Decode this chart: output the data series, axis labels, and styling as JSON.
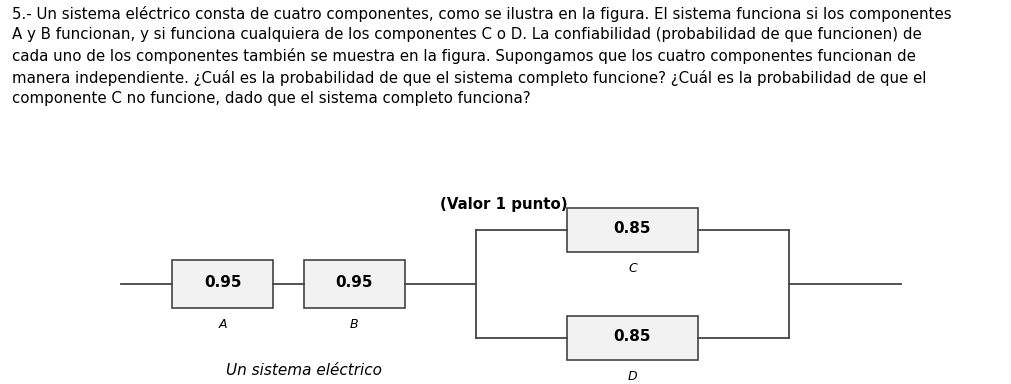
{
  "paragraph_normal": "5.- Un sistema eléctrico consta de cuatro componentes, como se ilustra en la figura. El sistema funciona si los componentes\nA y B funcionan, y si funciona cualquiera de los componentes C o D. La confiabilidad (probabilidad de que funcionen) de\ncada uno de los componentes también se muestra en la figura. Supongamos que los cuatro componentes funcionan de\nmanera independiente. ¿Cuál es la probabilidad de que el sistema completo funcione? ¿Cuál es la probabilidad de que el\ncomponente C no funcione, dado que el sistema completo funciona? ",
  "paragraph_bold": "(Valor 1 punto)",
  "caption": "Un sistema eléctrico",
  "bg_color": "#ffffff",
  "box_fill": "#f2f2f2",
  "box_edge": "#444444",
  "line_color": "#444444",
  "text_color": "#000000",
  "title_fontsize": 10.8,
  "label_fontsize": 11,
  "sub_fontsize": 9,
  "caption_fontsize": 11
}
